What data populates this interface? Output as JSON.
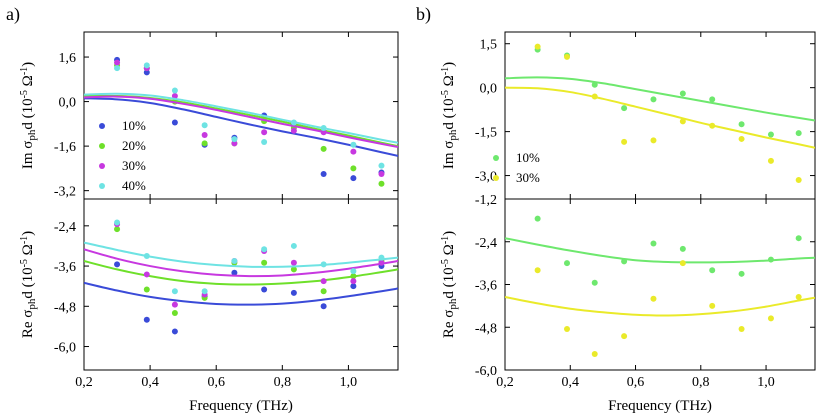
{
  "chart_data": [
    {
      "type": "scatter",
      "panel": "a",
      "subplot": "top",
      "ylabel": "Im σ_ph d (10^-5 Ω^-1)",
      "ylabel_parts": {
        "prefix": "Im σ",
        "sub": "ph",
        "mid": "d (10",
        "sup1": "-5",
        "post": " Ω",
        "sup2": "-1",
        "end": ")"
      },
      "xlim": [
        0.2,
        1.15
      ],
      "ylim": [
        -3.5,
        2.5
      ],
      "yticks": [
        "1,6",
        "0,0",
        "-1,6",
        "-3,2"
      ],
      "ytick_values": [
        1.6,
        0.0,
        -1.6,
        -3.2
      ],
      "legend": [
        "10%",
        "20%",
        "30%",
        "40%"
      ],
      "series": [
        {
          "name": "10%",
          "color": "#3a4bd8",
          "x": [
            0.3,
            0.39,
            0.475,
            0.565,
            0.655,
            0.745,
            0.835,
            0.925,
            1.015,
            1.1
          ],
          "y": [
            1.5,
            1.05,
            -0.75,
            -1.55,
            -1.3,
            -0.5,
            -0.85,
            -2.6,
            -2.75,
            -2.55
          ],
          "fit_x": [
            0.2,
            0.3,
            0.4,
            0.5,
            0.6,
            0.7,
            0.8,
            0.9,
            1.0,
            1.1,
            1.15
          ],
          "fit_y": [
            0.12,
            0.08,
            -0.05,
            -0.28,
            -0.55,
            -0.82,
            -1.07,
            -1.3,
            -1.55,
            -1.82,
            -1.95
          ]
        },
        {
          "name": "20%",
          "color": "#6ee02a",
          "x": [
            0.3,
            0.39,
            0.475,
            0.565,
            0.655,
            0.745,
            0.835,
            0.925,
            1.015,
            1.1
          ],
          "y": [
            1.3,
            1.2,
            0.0,
            -1.5,
            -1.5,
            -0.7,
            -0.95,
            -1.7,
            -2.4,
            -2.95
          ],
          "fit_x": [
            0.2,
            0.3,
            0.4,
            0.5,
            0.6,
            0.7,
            0.8,
            0.9,
            1.0,
            1.1,
            1.15
          ],
          "fit_y": [
            0.2,
            0.2,
            0.13,
            -0.03,
            -0.25,
            -0.48,
            -0.72,
            -0.98,
            -1.22,
            -1.48,
            -1.6
          ]
        },
        {
          "name": "30%",
          "color": "#c738e0",
          "x": [
            0.3,
            0.39,
            0.475,
            0.565,
            0.655,
            0.745,
            0.835,
            0.925,
            1.015,
            1.1
          ],
          "y": [
            1.4,
            1.2,
            0.2,
            -1.2,
            -1.5,
            -1.1,
            -1.05,
            -1.1,
            -1.8,
            -2.6
          ],
          "fit_x": [
            0.2,
            0.3,
            0.4,
            0.5,
            0.6,
            0.7,
            0.8,
            0.9,
            1.0,
            1.1,
            1.15
          ],
          "fit_y": [
            0.15,
            0.18,
            0.1,
            -0.08,
            -0.3,
            -0.55,
            -0.8,
            -1.03,
            -1.28,
            -1.52,
            -1.63
          ]
        },
        {
          "name": "40%",
          "color": "#6ee3e3",
          "x": [
            0.3,
            0.39,
            0.475,
            0.565,
            0.655,
            0.745,
            0.835,
            0.925,
            1.015,
            1.1
          ],
          "y": [
            1.2,
            1.3,
            0.4,
            -0.85,
            -1.35,
            -1.45,
            -0.75,
            -0.95,
            -1.55,
            -2.3
          ],
          "fit_x": [
            0.2,
            0.3,
            0.4,
            0.5,
            0.6,
            0.7,
            0.8,
            0.9,
            1.0,
            1.1,
            1.15
          ],
          "fit_y": [
            0.25,
            0.28,
            0.22,
            0.05,
            -0.17,
            -0.4,
            -0.65,
            -0.9,
            -1.13,
            -1.37,
            -1.48
          ]
        }
      ]
    },
    {
      "type": "scatter",
      "panel": "a",
      "subplot": "bottom",
      "ylabel": "Re σ_ph d (10^-5 Ω^-1)",
      "ylabel_parts": {
        "prefix": "Re σ",
        "sub": "ph",
        "mid": "d (10",
        "sup1": "-5",
        "post": " Ω",
        "sup2": "-1",
        "end": ")"
      },
      "xlabel": "Frequency (THz)",
      "xlim": [
        0.2,
        1.15
      ],
      "ylim": [
        -6.7,
        -1.6
      ],
      "xticks": [
        "0,2",
        "0,4",
        "0,6",
        "0,8",
        "1,0"
      ],
      "xtick_values": [
        0.2,
        0.4,
        0.6,
        0.8,
        1.0
      ],
      "yticks": [
        "-2,4",
        "-3,6",
        "-4,8",
        "-6,0"
      ],
      "ytick_values": [
        -2.4,
        -3.6,
        -4.8,
        -6.0
      ],
      "series": [
        {
          "name": "10%",
          "color": "#3a4bd8",
          "x": [
            0.3,
            0.39,
            0.475,
            0.565,
            0.655,
            0.745,
            0.835,
            0.925,
            1.015,
            1.1
          ],
          "y": [
            -3.55,
            -5.2,
            -5.55,
            -4.5,
            -3.8,
            -4.3,
            -4.4,
            -4.8,
            -4.2,
            -3.6
          ],
          "fit_x": [
            0.2,
            0.3,
            0.4,
            0.5,
            0.6,
            0.7,
            0.8,
            0.9,
            1.0,
            1.1,
            1.15
          ],
          "fit_y": [
            -4.1,
            -4.33,
            -4.52,
            -4.65,
            -4.73,
            -4.75,
            -4.72,
            -4.63,
            -4.5,
            -4.35,
            -4.27
          ]
        },
        {
          "name": "20%",
          "color": "#6ee02a",
          "x": [
            0.3,
            0.39,
            0.475,
            0.565,
            0.655,
            0.745,
            0.835,
            0.925,
            1.015,
            1.1
          ],
          "y": [
            -2.5,
            -4.3,
            -5.0,
            -4.55,
            -3.5,
            -3.5,
            -3.7,
            -4.35,
            -3.9,
            -3.45
          ],
          "fit_x": [
            0.2,
            0.3,
            0.4,
            0.5,
            0.6,
            0.7,
            0.8,
            0.9,
            1.0,
            1.1,
            1.15
          ],
          "fit_y": [
            -3.45,
            -3.7,
            -3.9,
            -4.05,
            -4.13,
            -4.15,
            -4.12,
            -4.05,
            -3.93,
            -3.78,
            -3.7
          ]
        },
        {
          "name": "30%",
          "color": "#c738e0",
          "x": [
            0.3,
            0.39,
            0.475,
            0.565,
            0.655,
            0.745,
            0.835,
            0.925,
            1.015,
            1.1
          ],
          "y": [
            -2.35,
            -3.85,
            -4.75,
            -4.45,
            -3.45,
            -3.15,
            -3.5,
            -4.05,
            -4.05,
            -3.5
          ],
          "fit_x": [
            0.2,
            0.3,
            0.4,
            0.5,
            0.6,
            0.7,
            0.8,
            0.9,
            1.0,
            1.1,
            1.15
          ],
          "fit_y": [
            -3.1,
            -3.38,
            -3.6,
            -3.76,
            -3.86,
            -3.9,
            -3.88,
            -3.8,
            -3.68,
            -3.53,
            -3.45
          ]
        },
        {
          "name": "40%",
          "color": "#6ee3e3",
          "x": [
            0.3,
            0.39,
            0.475,
            0.565,
            0.655,
            0.745,
            0.835,
            0.925,
            1.015,
            1.1
          ],
          "y": [
            -2.3,
            -3.3,
            -4.35,
            -4.35,
            -3.45,
            -3.1,
            -3.0,
            -3.55,
            -3.75,
            -3.35
          ],
          "fit_x": [
            0.2,
            0.3,
            0.4,
            0.5,
            0.6,
            0.7,
            0.8,
            0.9,
            1.0,
            1.1,
            1.15
          ],
          "fit_y": [
            -2.9,
            -3.12,
            -3.32,
            -3.47,
            -3.57,
            -3.62,
            -3.62,
            -3.58,
            -3.5,
            -3.4,
            -3.35
          ]
        }
      ]
    },
    {
      "type": "scatter",
      "panel": "b",
      "subplot": "top",
      "ylabel": "Im σ_ph d (10^-5 Ω^-1)",
      "ylabel_parts": {
        "prefix": "Im σ",
        "sub": "ph",
        "mid": "d (10",
        "sup1": "-5",
        "post": " Ω",
        "sup2": "-1",
        "end": ")"
      },
      "xlim": [
        0.2,
        1.15
      ],
      "ylim": [
        -3.8,
        1.9
      ],
      "yticks": [
        "1,5",
        "0,0",
        "-1,5",
        "-3,0"
      ],
      "ytick_values": [
        1.5,
        0.0,
        -1.5,
        -3.0
      ],
      "legend": [
        "10%",
        "30%"
      ],
      "series": [
        {
          "name": "10%",
          "color": "#6ee86e",
          "x": [
            0.3,
            0.39,
            0.475,
            0.565,
            0.655,
            0.745,
            0.835,
            0.925,
            1.015,
            1.1
          ],
          "y": [
            1.3,
            1.1,
            0.1,
            -0.7,
            -0.4,
            -0.2,
            -0.4,
            -1.25,
            -1.6,
            -1.55
          ],
          "fit_x": [
            0.2,
            0.3,
            0.4,
            0.5,
            0.6,
            0.7,
            0.8,
            0.9,
            1.0,
            1.1,
            1.15
          ],
          "fit_y": [
            0.32,
            0.35,
            0.3,
            0.15,
            -0.05,
            -0.25,
            -0.45,
            -0.65,
            -0.85,
            -1.03,
            -1.12
          ]
        },
        {
          "name": "30%",
          "color": "#eaea2a",
          "x": [
            0.3,
            0.39,
            0.475,
            0.565,
            0.655,
            0.745,
            0.835,
            0.925,
            1.015,
            1.1
          ],
          "y": [
            1.4,
            1.05,
            -0.3,
            -1.85,
            -1.8,
            -1.15,
            -1.3,
            -1.75,
            -2.5,
            -3.15
          ],
          "fit_x": [
            0.2,
            0.3,
            0.4,
            0.5,
            0.6,
            0.7,
            0.8,
            0.9,
            1.0,
            1.1,
            1.15
          ],
          "fit_y": [
            0.0,
            -0.02,
            -0.15,
            -0.38,
            -0.65,
            -0.92,
            -1.2,
            -1.45,
            -1.7,
            -1.93,
            -2.05
          ]
        }
      ]
    },
    {
      "type": "scatter",
      "panel": "b",
      "subplot": "bottom",
      "ylabel": "Re σ_ph d (10^-5 Ω^-1)",
      "ylabel_parts": {
        "prefix": "Re σ",
        "sub": "ph",
        "mid": "d (10",
        "sup1": "-5",
        "post": " Ω",
        "sup2": "-1",
        "end": ")"
      },
      "xlabel": "Frequency (THz)",
      "xlim": [
        0.2,
        1.15
      ],
      "ylim": [
        -6.0,
        -1.2
      ],
      "xticks": [
        "0,2",
        "0,4",
        "0,6",
        "0,8",
        "1,0"
      ],
      "xtick_values": [
        0.2,
        0.4,
        0.6,
        0.8,
        1.0
      ],
      "yticks": [
        "-1,2",
        "-2,4",
        "-3,6",
        "-4,8",
        "-6,0"
      ],
      "ytick_values": [
        -1.2,
        -2.4,
        -3.6,
        -4.8,
        -6.0
      ],
      "series": [
        {
          "name": "10%",
          "color": "#6ee86e",
          "x": [
            0.3,
            0.39,
            0.475,
            0.565,
            0.655,
            0.745,
            0.835,
            0.925,
            1.015,
            1.1
          ],
          "y": [
            -1.75,
            -3.0,
            -3.55,
            -2.95,
            -2.45,
            -2.6,
            -3.2,
            -3.3,
            -2.9,
            -2.3
          ],
          "fit_x": [
            0.2,
            0.3,
            0.4,
            0.5,
            0.6,
            0.7,
            0.8,
            0.9,
            1.0,
            1.1,
            1.15
          ],
          "fit_y": [
            -2.3,
            -2.48,
            -2.65,
            -2.8,
            -2.92,
            -2.97,
            -2.98,
            -2.97,
            -2.93,
            -2.87,
            -2.85
          ]
        },
        {
          "name": "30%",
          "color": "#eaea2a",
          "x": [
            0.3,
            0.39,
            0.475,
            0.565,
            0.655,
            0.745,
            0.835,
            0.925,
            1.015,
            1.1
          ],
          "y": [
            -3.2,
            -4.85,
            -5.55,
            -5.05,
            -4.0,
            -3.0,
            -4.2,
            -4.85,
            -4.55,
            -3.95
          ],
          "fit_x": [
            0.2,
            0.3,
            0.4,
            0.5,
            0.6,
            0.7,
            0.8,
            0.9,
            1.0,
            1.1,
            1.15
          ],
          "fit_y": [
            -3.95,
            -4.13,
            -4.28,
            -4.38,
            -4.45,
            -4.47,
            -4.43,
            -4.35,
            -4.22,
            -4.05,
            -3.97
          ]
        }
      ]
    }
  ],
  "panel_labels": [
    "a)",
    "b)"
  ],
  "xlabel": "Frequency (THz)"
}
